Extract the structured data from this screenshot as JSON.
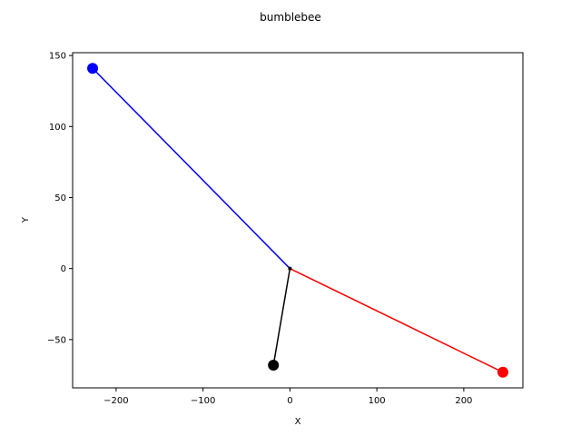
{
  "chart_data": {
    "type": "line",
    "title": "bumblebee",
    "xlabel": "X",
    "ylabel": "Y",
    "xlim": [
      -250,
      268
    ],
    "ylim": [
      -84,
      152
    ],
    "xticks": [
      -200,
      -100,
      0,
      100,
      200
    ],
    "yticks": [
      -50,
      0,
      50,
      100,
      150
    ],
    "grid": false,
    "series": [
      {
        "color": "#0000ff",
        "x": [
          0,
          -227
        ],
        "y": [
          0,
          141
        ],
        "end_marker": "circle"
      },
      {
        "color": "#ff0000",
        "x": [
          0,
          245
        ],
        "y": [
          0,
          -73
        ],
        "end_marker": "circle"
      },
      {
        "color": "#000000",
        "x": [
          0,
          -19
        ],
        "y": [
          0,
          -68
        ],
        "end_marker": "circle"
      }
    ],
    "origin_marker": {
      "x": 0,
      "y": 0,
      "color": "#000000"
    }
  }
}
